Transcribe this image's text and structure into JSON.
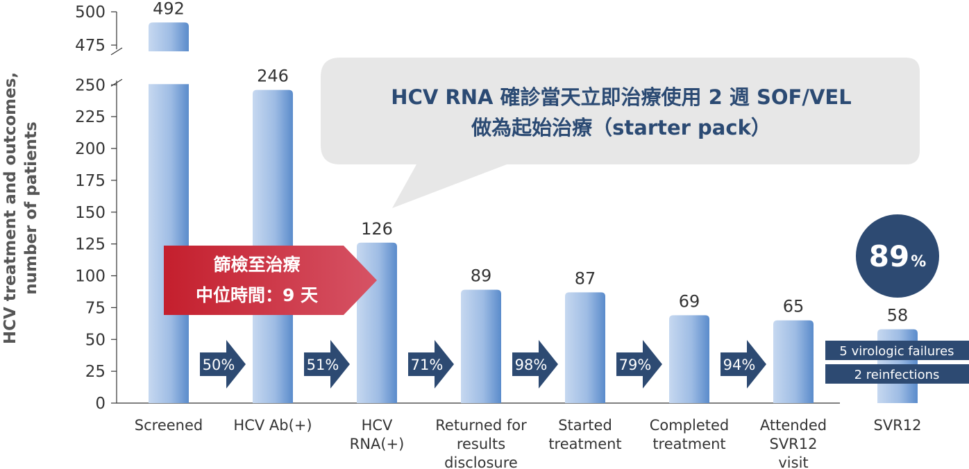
{
  "chart_data": {
    "type": "bar",
    "ylabel_lines": [
      "HCV treatment and outcomes,",
      "number of patients"
    ],
    "categories": [
      [
        "Screened"
      ],
      [
        "HCV Ab(+)"
      ],
      [
        "HCV",
        "RNA(+)"
      ],
      [
        "Returned for",
        "results",
        "disclosure"
      ],
      [
        "Started",
        "treatment"
      ],
      [
        "Completed",
        "treatment"
      ],
      [
        "Attended",
        "SVR12",
        "visit"
      ],
      [
        "SVR12"
      ]
    ],
    "values": [
      492,
      246,
      126,
      89,
      87,
      69,
      65,
      58
    ],
    "value_labels": [
      "492",
      "246",
      "126",
      "89",
      "87",
      "69",
      "65",
      "58"
    ],
    "ylim": [
      0,
      500
    ],
    "axis_break": [
      250,
      475
    ],
    "yticks": [
      "0",
      "25",
      "50",
      "75",
      "100",
      "125",
      "150",
      "175",
      "200",
      "225",
      "250",
      "475",
      "500"
    ],
    "grid": false,
    "step_percentages": [
      "50%",
      "51%",
      "71%",
      "98%",
      "79%",
      "94%"
    ],
    "callout_lines": [
      "HCV RNA 確診當天立即治療使用 2 週 SOF/VEL",
      "做為起始治療（starter pack）"
    ],
    "highlight_lines": [
      "篩檢至治療",
      "中位時間：9 天"
    ],
    "badge": {
      "value": "89",
      "unit": "%"
    },
    "notes": [
      "5 virologic failures",
      "2 reinfections"
    ],
    "colors": {
      "bar_light": "#c4d6ef",
      "bar_dark": "#5b8ccb",
      "arrow": "#2d4a72",
      "highlight_red": "#c8202e",
      "callout_bg": "#e7e7e7",
      "callout_text": "#2b4a73"
    }
  }
}
